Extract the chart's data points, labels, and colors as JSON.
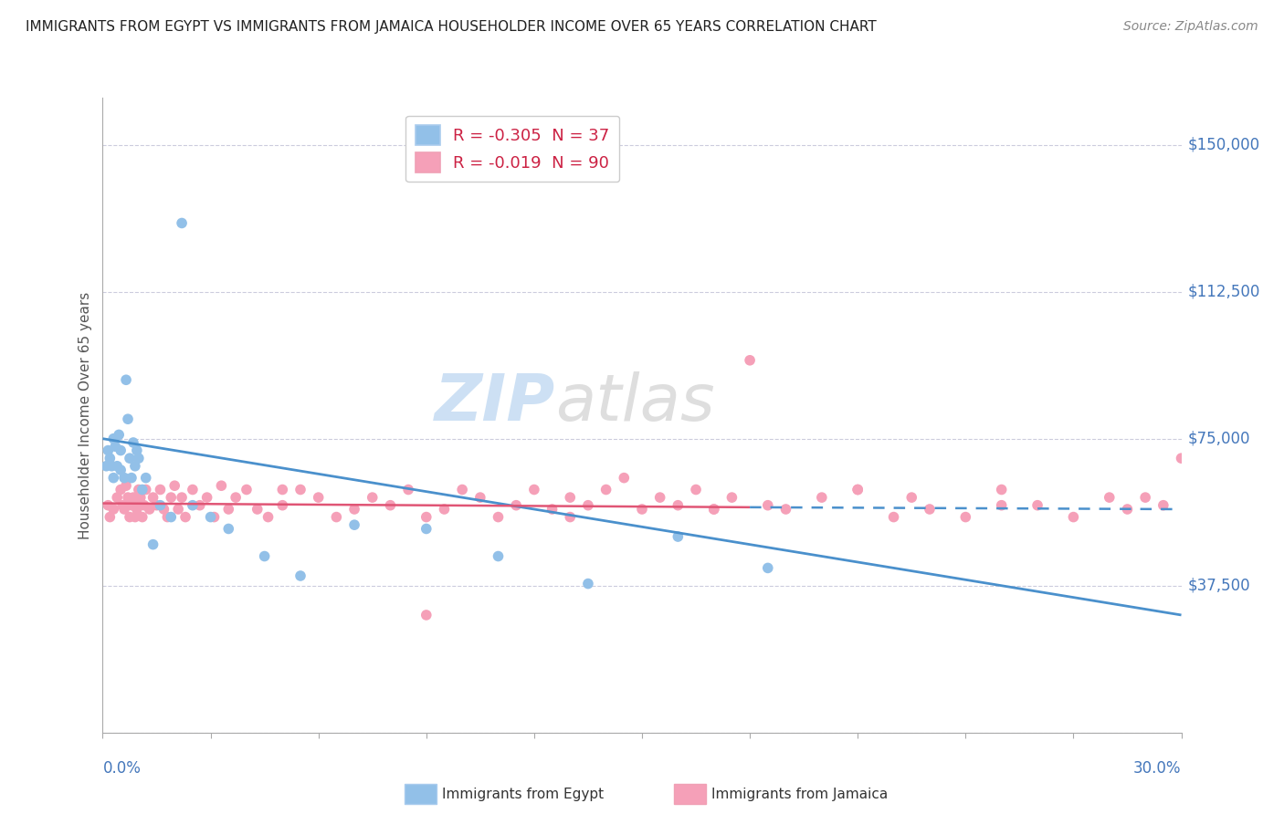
{
  "title": "IMMIGRANTS FROM EGYPT VS IMMIGRANTS FROM JAMAICA HOUSEHOLDER INCOME OVER 65 YEARS CORRELATION CHART",
  "source": "Source: ZipAtlas.com",
  "ylabel": "Householder Income Over 65 years",
  "y_ticks": [
    0,
    37500,
    75000,
    112500,
    150000
  ],
  "y_tick_labels": [
    "",
    "$37,500",
    "$75,000",
    "$112,500",
    "$150,000"
  ],
  "x_range": [
    0.0,
    30.0
  ],
  "y_range": [
    0,
    162000
  ],
  "egypt_color": "#92c0e8",
  "jamaica_color": "#f5a0b8",
  "egypt_line_color": "#4a90cc",
  "jamaica_line_color": "#e05575",
  "egypt_R": -0.305,
  "egypt_N": 37,
  "jamaica_R": -0.019,
  "jamaica_N": 90,
  "watermark_zip": "ZIP",
  "watermark_atlas": "atlas",
  "legend_label_egypt": "Immigrants from Egypt",
  "legend_label_jamaica": "Immigrants from Jamaica",
  "egypt_x": [
    0.1,
    0.15,
    0.2,
    0.25,
    0.3,
    0.3,
    0.35,
    0.4,
    0.45,
    0.5,
    0.5,
    0.6,
    0.65,
    0.7,
    0.75,
    0.8,
    0.85,
    0.9,
    0.95,
    1.0,
    1.1,
    1.2,
    1.4,
    1.6,
    1.9,
    2.2,
    2.5,
    3.0,
    3.5,
    4.5,
    5.5,
    7.0,
    9.0,
    11.0,
    13.5,
    16.0,
    18.5
  ],
  "egypt_y": [
    68000,
    72000,
    70000,
    68000,
    75000,
    65000,
    73000,
    68000,
    76000,
    67000,
    72000,
    65000,
    90000,
    80000,
    70000,
    65000,
    74000,
    68000,
    72000,
    70000,
    62000,
    65000,
    48000,
    58000,
    55000,
    130000,
    58000,
    55000,
    52000,
    45000,
    40000,
    53000,
    52000,
    45000,
    38000,
    50000,
    42000
  ],
  "jamaica_x": [
    0.15,
    0.2,
    0.3,
    0.4,
    0.5,
    0.55,
    0.6,
    0.65,
    0.7,
    0.75,
    0.8,
    0.85,
    0.9,
    0.95,
    1.0,
    1.0,
    1.05,
    1.1,
    1.15,
    1.2,
    1.3,
    1.4,
    1.5,
    1.6,
    1.7,
    1.8,
    1.9,
    2.0,
    2.1,
    2.2,
    2.3,
    2.5,
    2.7,
    2.9,
    3.1,
    3.3,
    3.5,
    3.7,
    4.0,
    4.3,
    4.6,
    5.0,
    5.5,
    6.0,
    6.5,
    7.0,
    7.5,
    8.0,
    8.5,
    9.0,
    9.5,
    10.0,
    10.5,
    11.0,
    11.5,
    12.0,
    12.5,
    13.0,
    13.5,
    14.0,
    14.5,
    15.0,
    15.5,
    16.0,
    16.5,
    17.0,
    17.5,
    18.0,
    18.5,
    19.0,
    20.0,
    21.0,
    22.0,
    22.5,
    23.0,
    24.0,
    25.0,
    26.0,
    27.0,
    28.0,
    28.5,
    29.0,
    29.5,
    30.0,
    5.0,
    9.0,
    13.0,
    17.0,
    21.0,
    25.0
  ],
  "jamaica_y": [
    58000,
    55000,
    57000,
    60000,
    62000,
    58000,
    57000,
    63000,
    60000,
    55000,
    58000,
    60000,
    55000,
    57000,
    62000,
    58000,
    60000,
    55000,
    58000,
    62000,
    57000,
    60000,
    58000,
    62000,
    57000,
    55000,
    60000,
    63000,
    57000,
    60000,
    55000,
    62000,
    58000,
    60000,
    55000,
    63000,
    57000,
    60000,
    62000,
    57000,
    55000,
    58000,
    62000,
    60000,
    55000,
    57000,
    60000,
    58000,
    62000,
    55000,
    57000,
    62000,
    60000,
    55000,
    58000,
    62000,
    57000,
    60000,
    58000,
    62000,
    65000,
    57000,
    60000,
    58000,
    62000,
    57000,
    60000,
    95000,
    58000,
    57000,
    60000,
    62000,
    55000,
    60000,
    57000,
    55000,
    62000,
    58000,
    55000,
    60000,
    57000,
    60000,
    58000,
    70000,
    62000,
    30000,
    55000,
    57000,
    62000,
    58000
  ]
}
